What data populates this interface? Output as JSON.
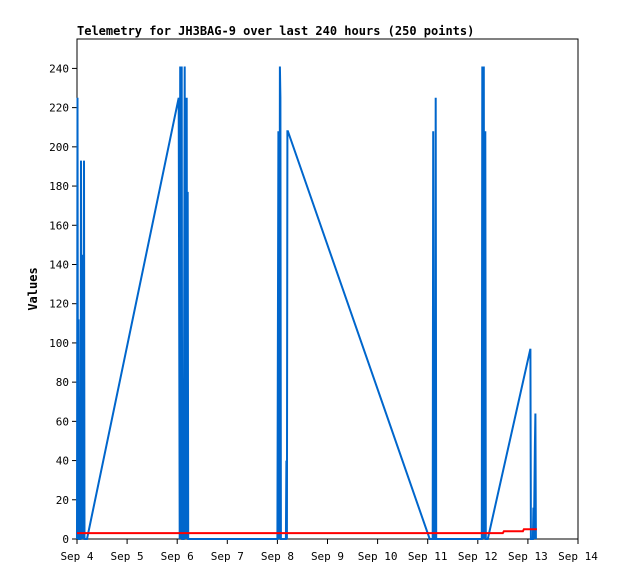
{
  "chart_data": {
    "type": "line",
    "title": "Telemetry for JH3BAG-9 over last 240 hours (250 points)",
    "xlabel": "",
    "ylabel": "Values",
    "x_ticks": [
      "Sep 4",
      "Sep 5",
      "Sep 6",
      "Sep 7",
      "Sep 8",
      "Sep 9",
      "Sep 10",
      "Sep 11",
      "Sep 12",
      "Sep 13",
      "Sep 14"
    ],
    "y_ticks": [
      "0",
      "20",
      "40",
      "60",
      "80",
      "100",
      "120",
      "140",
      "160",
      "180",
      "200",
      "220",
      "240"
    ],
    "xlim": [
      4.0,
      14.0
    ],
    "ylim": [
      0,
      255
    ],
    "grid": false,
    "x_unit": "day of September",
    "series": [
      {
        "color": "#0066cc",
        "points": [
          [
            4.0,
            0
          ],
          [
            4.01,
            225
          ],
          [
            4.02,
            0
          ],
          [
            4.03,
            112
          ],
          [
            4.04,
            0
          ],
          [
            4.06,
            0
          ],
          [
            4.07,
            0
          ],
          [
            4.08,
            193
          ],
          [
            4.09,
            0
          ],
          [
            4.1,
            97
          ],
          [
            4.11,
            0
          ],
          [
            4.12,
            145
          ],
          [
            4.13,
            48
          ],
          [
            4.14,
            193
          ],
          [
            4.15,
            0
          ],
          [
            4.2,
            0
          ],
          [
            6.03,
            225
          ],
          [
            6.05,
            0
          ],
          [
            6.06,
            241
          ],
          [
            6.08,
            0
          ],
          [
            6.09,
            241
          ],
          [
            6.1,
            0
          ],
          [
            6.13,
            0
          ],
          [
            6.15,
            241
          ],
          [
            6.16,
            0
          ],
          [
            6.17,
            225
          ],
          [
            6.18,
            0
          ],
          [
            6.19,
            225
          ],
          [
            6.2,
            0
          ],
          [
            6.21,
            177
          ],
          [
            6.22,
            0
          ],
          [
            8.0,
            0
          ],
          [
            8.02,
            208
          ],
          [
            8.04,
            0
          ],
          [
            8.05,
            241
          ],
          [
            8.06,
            225
          ],
          [
            8.07,
            0
          ],
          [
            8.17,
            0
          ],
          [
            8.18,
            40
          ],
          [
            8.19,
            0
          ],
          [
            8.2,
            208
          ],
          [
            8.21,
            208
          ],
          [
            11.04,
            0
          ],
          [
            11.05,
            0
          ],
          [
            11.1,
            0
          ],
          [
            11.11,
            208
          ],
          [
            11.12,
            0
          ],
          [
            11.15,
            0
          ],
          [
            11.16,
            225
          ],
          [
            11.17,
            0
          ],
          [
            12.08,
            0
          ],
          [
            12.09,
            241
          ],
          [
            12.1,
            0
          ],
          [
            12.11,
            177
          ],
          [
            12.12,
            241
          ],
          [
            12.13,
            0
          ],
          [
            12.14,
            120
          ],
          [
            12.15,
            208
          ],
          [
            12.16,
            0
          ],
          [
            12.2,
            0
          ],
          [
            13.05,
            97
          ],
          [
            13.06,
            0
          ],
          [
            13.1,
            0
          ],
          [
            13.11,
            16
          ],
          [
            13.12,
            0
          ],
          [
            13.14,
            48
          ],
          [
            13.15,
            64
          ],
          [
            13.16,
            0
          ]
        ]
      },
      {
        "color": "#ff0000",
        "points": [
          [
            4.0,
            3
          ],
          [
            12.5,
            3
          ],
          [
            12.52,
            4
          ],
          [
            12.9,
            4
          ],
          [
            12.92,
            5
          ],
          [
            13.18,
            5
          ]
        ]
      }
    ]
  }
}
